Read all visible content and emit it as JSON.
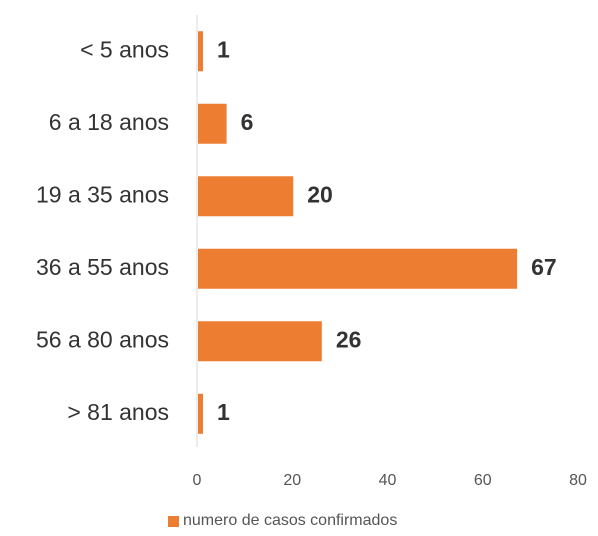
{
  "chart_data": {
    "type": "bar",
    "orientation": "horizontal",
    "categories": [
      "< 5 anos",
      "6 a 18 anos",
      "19 a 35 anos",
      "36 a 55 anos",
      "56 a 80 anos",
      "> 81 anos"
    ],
    "series": [
      {
        "name": "numero de casos confirmados",
        "values": [
          1,
          6,
          20,
          67,
          26,
          1
        ],
        "color": "#ED7D31"
      }
    ],
    "xlim": [
      0,
      80
    ],
    "xticks": [
      "0",
      "20",
      "40",
      "60",
      "80"
    ],
    "data_labels": [
      "1",
      "6",
      "20",
      "67",
      "26",
      "1"
    ],
    "grid": false,
    "legend_position": "bottom"
  }
}
